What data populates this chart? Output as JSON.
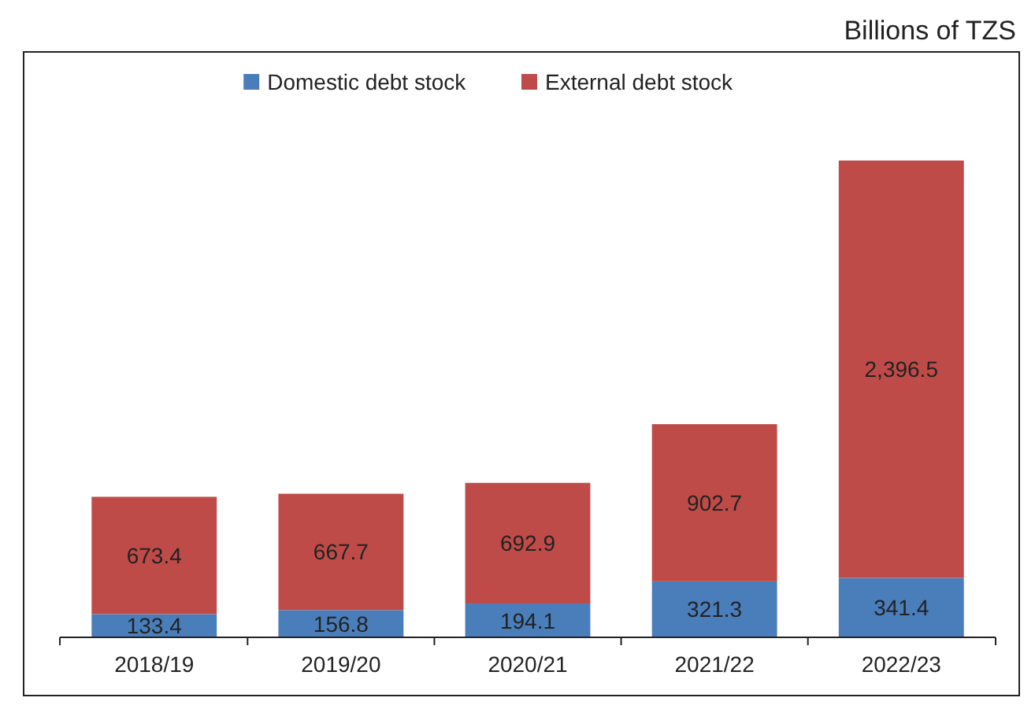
{
  "chart_data": {
    "type": "bar",
    "stacked": true,
    "ylabel": "Billions of TZS",
    "categories": [
      "2018/19",
      "2019/20",
      "2020/21",
      "2021/22",
      "2022/23"
    ],
    "series": [
      {
        "name": "Domestic debt stock",
        "color": "#4a7ebb",
        "values": [
          133.4,
          156.8,
          194.1,
          321.3,
          341.4
        ],
        "value_labels": [
          "133.4",
          "156.8",
          "194.1",
          "321.3",
          "341.4"
        ]
      },
      {
        "name": "External debt stock",
        "color": "#be4b48",
        "values": [
          673.4,
          667.7,
          692.9,
          902.7,
          2396.5
        ],
        "value_labels": [
          "673.4",
          "667.7",
          "692.9",
          "902.7",
          "2,396.5"
        ]
      }
    ],
    "legend": "top",
    "grid": false
  }
}
